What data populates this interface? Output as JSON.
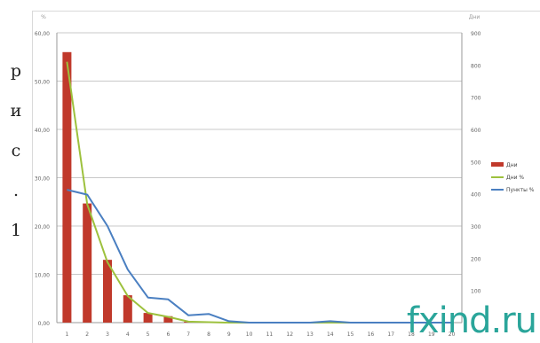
{
  "side_caption": [
    "р",
    "и",
    "с",
    ".",
    "1"
  ],
  "watermark": "fxind.ru",
  "chart_data": {
    "type": "bar",
    "categories": [
      "1",
      "2",
      "3",
      "4",
      "5",
      "6",
      "7",
      "8",
      "9",
      "10",
      "11",
      "12",
      "13",
      "14",
      "15",
      "16",
      "17",
      "18",
      "19",
      "20"
    ],
    "left_axis": {
      "label": "%",
      "ylim": [
        0,
        60
      ],
      "ticks": [
        "0,00",
        "10,00",
        "20,00",
        "30,00",
        "40,00",
        "50,00",
        "60,00"
      ]
    },
    "right_axis": {
      "label": "Дни",
      "ylim": [
        0,
        900
      ],
      "ticks": [
        "0",
        "100",
        "200",
        "300",
        "400",
        "500",
        "600",
        "700",
        "800",
        "900"
      ]
    },
    "series": [
      {
        "name": "Дни",
        "kind": "bar",
        "axis": "right",
        "color": "#c0392b",
        "values": [
          840,
          370,
          195,
          85,
          30,
          20,
          3,
          2,
          1,
          0,
          0,
          0,
          0,
          0,
          0,
          0,
          0,
          0,
          0,
          0
        ]
      },
      {
        "name": "Дни %",
        "kind": "line",
        "axis": "left",
        "color": "#9dc13d",
        "values": [
          54,
          24.5,
          12.5,
          5.5,
          2,
          1.2,
          0.2,
          0.1,
          0,
          0,
          0,
          0,
          0,
          0,
          0,
          0,
          0,
          0,
          0,
          0
        ]
      },
      {
        "name": "Пункты %",
        "kind": "line",
        "axis": "left",
        "color": "#4a7fc1",
        "values": [
          27.5,
          26.5,
          20,
          11,
          5.2,
          4.8,
          1.5,
          1.8,
          0.3,
          0,
          0,
          0,
          0,
          0.3,
          0,
          0,
          0,
          0,
          0,
          0
        ]
      }
    ],
    "legend_position": "right",
    "grid": true
  }
}
